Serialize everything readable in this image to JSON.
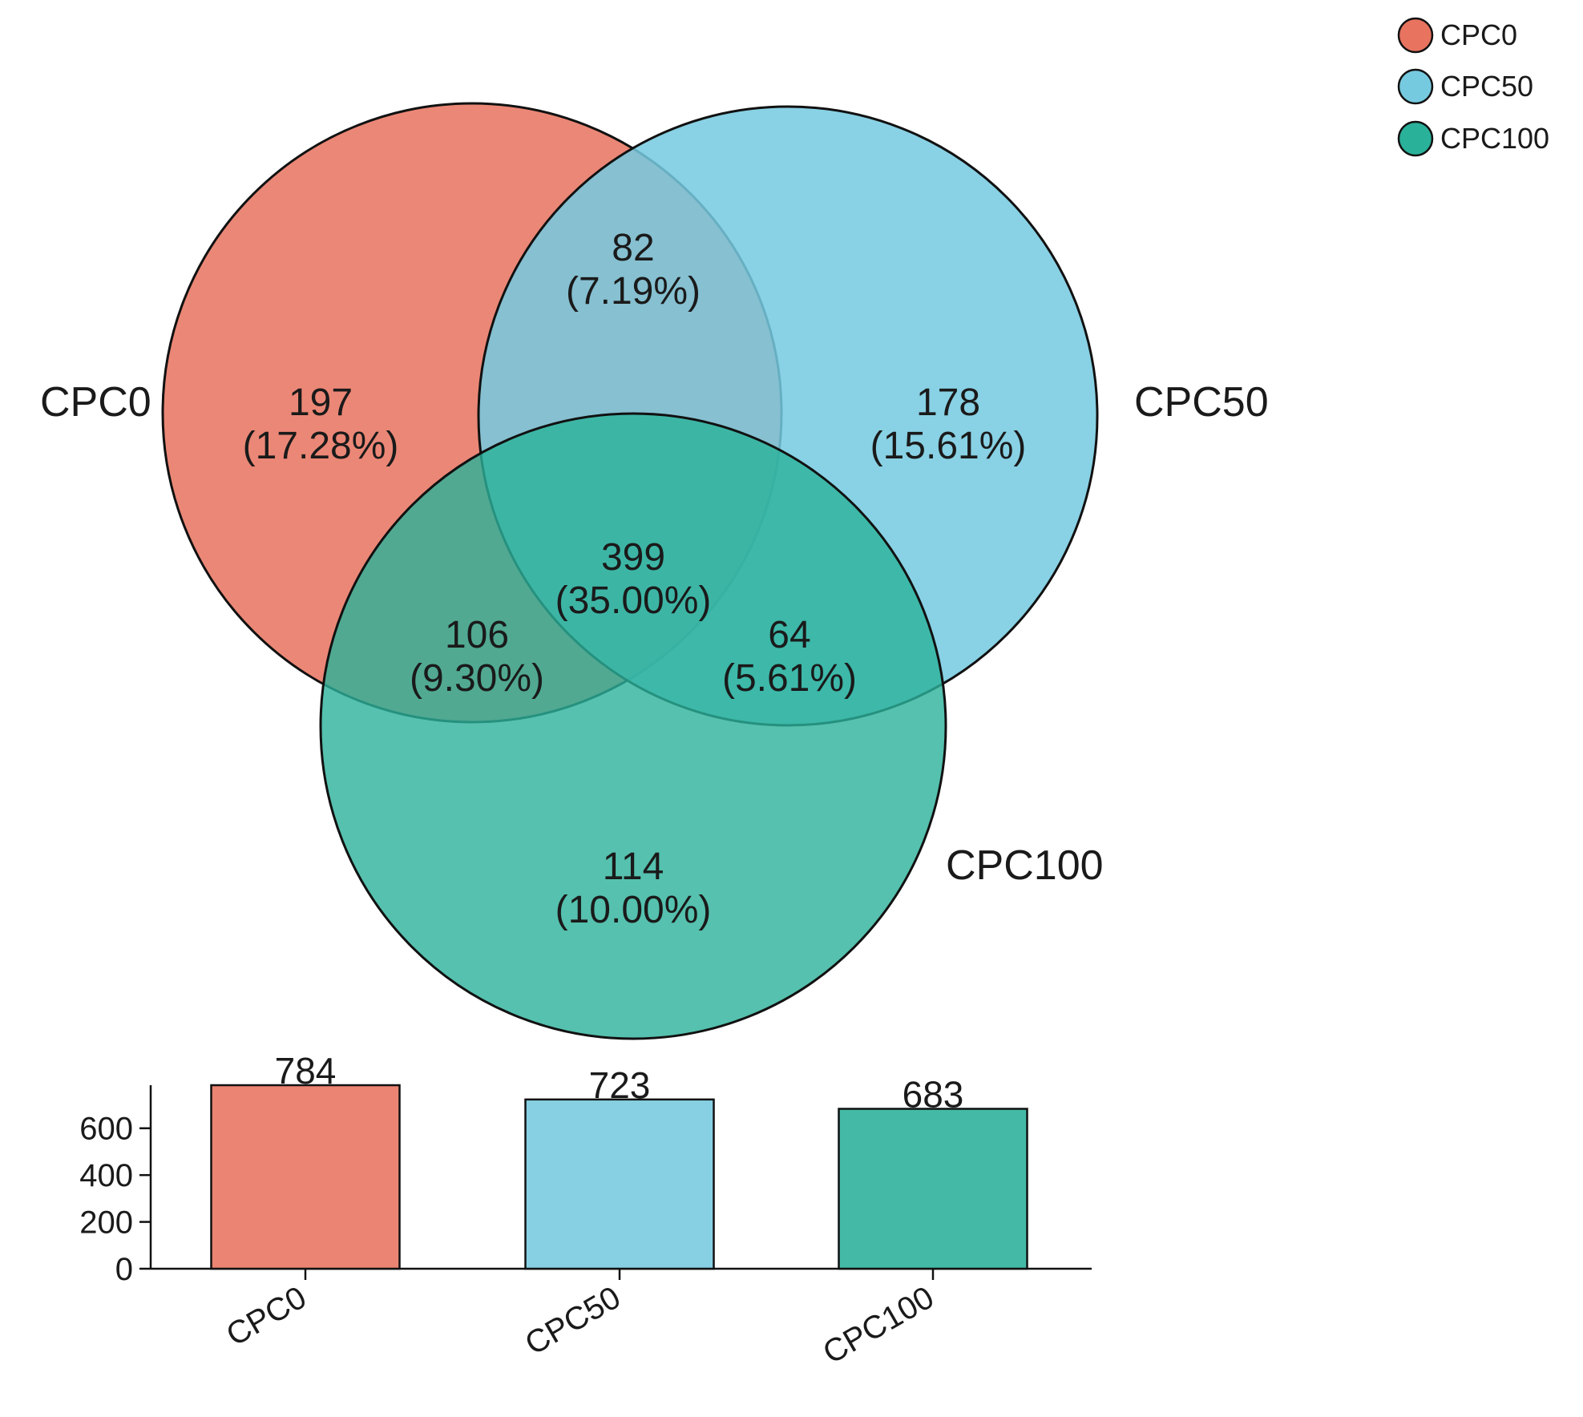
{
  "chart_data": [
    {
      "type": "venn",
      "sets": [
        {
          "name": "CPC0",
          "color": "#E8735F"
        },
        {
          "name": "CPC50",
          "color": "#76CADF"
        },
        {
          "name": "CPC100",
          "color": "#2AB19A"
        }
      ],
      "regions": [
        {
          "id": "only-cpc0",
          "sets": [
            "CPC0"
          ],
          "count": "197",
          "percent": "(17.28%)"
        },
        {
          "id": "cpc0-cpc50",
          "sets": [
            "CPC0",
            "CPC50"
          ],
          "count": "82",
          "percent": "(7.19%)"
        },
        {
          "id": "only-cpc50",
          "sets": [
            "CPC50"
          ],
          "count": "178",
          "percent": "(15.61%)"
        },
        {
          "id": "all-three",
          "sets": [
            "CPC0",
            "CPC50",
            "CPC100"
          ],
          "count": "399",
          "percent": "(35.00%)"
        },
        {
          "id": "cpc0-cpc100",
          "sets": [
            "CPC0",
            "CPC100"
          ],
          "count": "106",
          "percent": "(9.30%)"
        },
        {
          "id": "cpc50-cpc100",
          "sets": [
            "CPC50",
            "CPC100"
          ],
          "count": "64",
          "percent": "(5.61%)"
        },
        {
          "id": "only-cpc100",
          "sets": [
            "CPC100"
          ],
          "count": "114",
          "percent": "(10.00%)"
        }
      ],
      "legend": {
        "position": "top-right",
        "entries": [
          "CPC0",
          "CPC50",
          "CPC100"
        ]
      }
    },
    {
      "type": "bar",
      "categories": [
        "CPC0",
        "CPC50",
        "CPC100"
      ],
      "values": [
        784,
        723,
        683
      ],
      "colors": [
        "#E8735F",
        "#76CADF",
        "#2AB19A"
      ],
      "yticks": [
        0,
        200,
        400,
        600
      ],
      "ylim": [
        0,
        784
      ],
      "xlabel": "",
      "ylabel": ""
    }
  ]
}
